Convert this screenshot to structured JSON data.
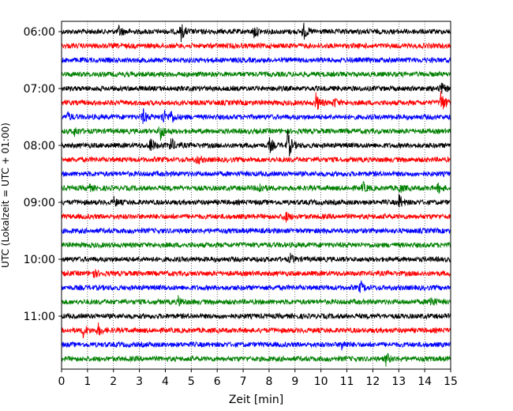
{
  "chart_data": {
    "type": "line",
    "title": "",
    "xlabel": "Zeit  [min]",
    "ylabel": "UTC (Lokalzeit = UTC + 01:00)",
    "xlim": [
      0,
      15
    ],
    "x_ticks": [
      "0",
      "1",
      "2",
      "3",
      "4",
      "5",
      "6",
      "7",
      "8",
      "9",
      "10",
      "11",
      "12",
      "13",
      "14",
      "15"
    ],
    "y_ticks": [
      "06:00",
      "07:00",
      "08:00",
      "09:00",
      "10:00",
      "11:00"
    ],
    "trace_colors": [
      "#000000",
      "#ff0000",
      "#0000ff",
      "#008000"
    ],
    "grid": "vertical dotted",
    "legend": "none",
    "traces": [
      {
        "start": "06:00",
        "color": "#000000",
        "events": [
          [
            2.2,
            8
          ],
          [
            4.6,
            11
          ],
          [
            7.4,
            9
          ],
          [
            9.3,
            12
          ]
        ]
      },
      {
        "start": "06:15",
        "color": "#ff0000",
        "events": []
      },
      {
        "start": "06:30",
        "color": "#0000ff",
        "events": []
      },
      {
        "start": "06:45",
        "color": "#008000",
        "events": []
      },
      {
        "start": "07:00",
        "color": "#000000",
        "events": [
          [
            14.6,
            8
          ]
        ]
      },
      {
        "start": "07:15",
        "color": "#ff0000",
        "events": [
          [
            9.8,
            12
          ],
          [
            10.5,
            6
          ],
          [
            14.6,
            18
          ]
        ]
      },
      {
        "start": "07:30",
        "color": "#0000ff",
        "events": [
          [
            0.2,
            6
          ],
          [
            3.1,
            12
          ],
          [
            3.9,
            10
          ],
          [
            4.2,
            9
          ]
        ]
      },
      {
        "start": "07:45",
        "color": "#008000",
        "events": [
          [
            0.5,
            6
          ],
          [
            3.8,
            12
          ]
        ]
      },
      {
        "start": "08:00",
        "color": "#000000",
        "events": [
          [
            3.4,
            12
          ],
          [
            4.2,
            10
          ],
          [
            8.0,
            10
          ],
          [
            8.7,
            22
          ]
        ]
      },
      {
        "start": "08:15",
        "color": "#ff0000",
        "events": [
          [
            5.2,
            6
          ]
        ]
      },
      {
        "start": "08:30",
        "color": "#0000ff",
        "events": []
      },
      {
        "start": "08:45",
        "color": "#008000",
        "events": [
          [
            1.0,
            6
          ],
          [
            7.6,
            8
          ],
          [
            11.6,
            7
          ],
          [
            13.0,
            6
          ],
          [
            14.5,
            7
          ]
        ]
      },
      {
        "start": "09:00",
        "color": "#000000",
        "events": [
          [
            2.0,
            6
          ],
          [
            13.0,
            10
          ]
        ]
      },
      {
        "start": "09:15",
        "color": "#ff0000",
        "events": [
          [
            8.6,
            8
          ]
        ]
      },
      {
        "start": "09:30",
        "color": "#0000ff",
        "events": []
      },
      {
        "start": "09:45",
        "color": "#008000",
        "events": []
      },
      {
        "start": "10:00",
        "color": "#000000",
        "events": [
          [
            8.8,
            6
          ]
        ]
      },
      {
        "start": "10:15",
        "color": "#ff0000",
        "events": [
          [
            1.2,
            6
          ]
        ]
      },
      {
        "start": "10:30",
        "color": "#0000ff",
        "events": [
          [
            11.5,
            8
          ]
        ]
      },
      {
        "start": "10:45",
        "color": "#008000",
        "events": [
          [
            4.5,
            6
          ],
          [
            14.2,
            9
          ]
        ]
      },
      {
        "start": "11:00",
        "color": "#000000",
        "events": []
      },
      {
        "start": "11:15",
        "color": "#ff0000",
        "events": [
          [
            0.8,
            10
          ],
          [
            1.4,
            8
          ]
        ]
      },
      {
        "start": "11:30",
        "color": "#0000ff",
        "events": [
          [
            10.8,
            6
          ]
        ]
      },
      {
        "start": "11:45",
        "color": "#008000",
        "events": [
          [
            12.5,
            8
          ]
        ]
      }
    ]
  }
}
